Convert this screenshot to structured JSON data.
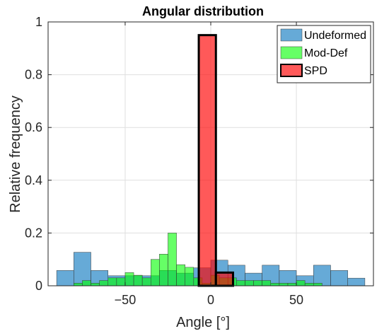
{
  "chart_data": {
    "type": "bar",
    "title": "Angular distribution",
    "xlabel": "Angle [°]",
    "ylabel": "Relative frequency",
    "xlim": [
      -95,
      95
    ],
    "ylim": [
      0,
      1
    ],
    "xticks": [
      -50,
      0,
      50
    ],
    "xtick_labels": [
      "−50",
      "0",
      "50"
    ],
    "yticks": [
      0,
      0.2,
      0.4,
      0.6,
      0.8,
      1
    ],
    "ytick_labels": [
      "0",
      "0.2",
      "0.4",
      "0.6",
      "0.8",
      "1"
    ],
    "grid": true,
    "legend_position": "top-right",
    "series": [
      {
        "name": "Undeformed",
        "color": "#0072BD",
        "bin_width": 10,
        "bins": [
          {
            "left": -90,
            "value": 0.058
          },
          {
            "left": -80,
            "value": 0.127
          },
          {
            "left": -70,
            "value": 0.058
          },
          {
            "left": -60,
            "value": 0.038
          },
          {
            "left": -50,
            "value": 0.038
          },
          {
            "left": -40,
            "value": 0.038
          },
          {
            "left": -30,
            "value": 0.058
          },
          {
            "left": -20,
            "value": 0.048
          },
          {
            "left": -10,
            "value": 0.068
          },
          {
            "left": 0,
            "value": 0.097
          },
          {
            "left": 10,
            "value": 0.078
          },
          {
            "left": 20,
            "value": 0.048
          },
          {
            "left": 30,
            "value": 0.078
          },
          {
            "left": 40,
            "value": 0.058
          },
          {
            "left": 50,
            "value": 0.038
          },
          {
            "left": 60,
            "value": 0.078
          },
          {
            "left": 70,
            "value": 0.058
          },
          {
            "left": 80,
            "value": 0.029
          }
        ]
      },
      {
        "name": "Mod-Def",
        "color": "#00FF00",
        "bin_width": 5,
        "bins": [
          {
            "left": -80,
            "value": 0.01
          },
          {
            "left": -75,
            "value": 0.02
          },
          {
            "left": -70,
            "value": 0.01
          },
          {
            "left": -65,
            "value": 0.02
          },
          {
            "left": -60,
            "value": 0.03
          },
          {
            "left": -55,
            "value": 0.03
          },
          {
            "left": -50,
            "value": 0.05
          },
          {
            "left": -45,
            "value": 0.04
          },
          {
            "left": -40,
            "value": 0.03
          },
          {
            "left": -35,
            "value": 0.1
          },
          {
            "left": -30,
            "value": 0.12
          },
          {
            "left": -25,
            "value": 0.2
          },
          {
            "left": -20,
            "value": 0.08
          },
          {
            "left": -15,
            "value": 0.07
          },
          {
            "left": -10,
            "value": 0.03
          },
          {
            "left": -5,
            "value": 0.01
          },
          {
            "left": 0,
            "value": 0.04
          },
          {
            "left": 5,
            "value": 0.03
          },
          {
            "left": 10,
            "value": 0.03
          },
          {
            "left": 15,
            "value": 0.02
          },
          {
            "left": 20,
            "value": 0.02
          },
          {
            "left": 25,
            "value": 0.02
          },
          {
            "left": 30,
            "value": 0.02
          },
          {
            "left": 35,
            "value": 0.01
          },
          {
            "left": 40,
            "value": 0.01
          },
          {
            "left": 45,
            "value": 0.01
          },
          {
            "left": 50,
            "value": 0.02
          },
          {
            "left": 55,
            "value": 0.01
          },
          {
            "left": 60,
            "value": 0.01
          }
        ]
      },
      {
        "name": "SPD",
        "color": "#FF0000",
        "bin_width": 10,
        "bins": [
          {
            "left": -7,
            "value": 0.95
          },
          {
            "left": 3,
            "value": 0.05
          }
        ]
      }
    ]
  }
}
